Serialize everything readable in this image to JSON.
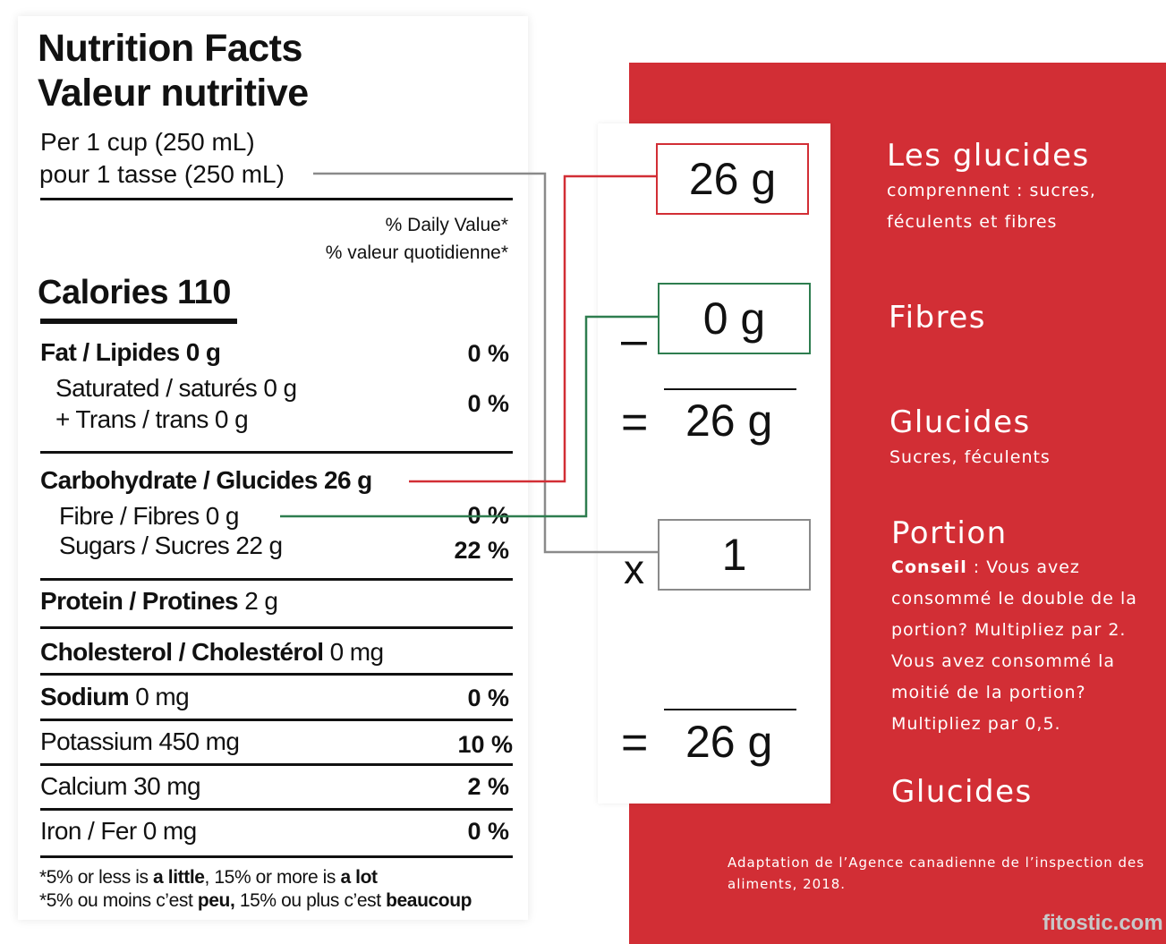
{
  "label": {
    "title_en": "Nutrition Facts",
    "title_fr": "Valeur nutritive",
    "serving_en": "Per 1 cup (250 mL)",
    "serving_fr": "pour 1 tasse (250 mL)",
    "dv_en": "% Daily Value*",
    "dv_fr": "% valeur quotidienne*",
    "calories": "Calories 110",
    "fat": {
      "label": "Fat / Lipides 0 g",
      "pct": "0 %"
    },
    "saturated": {
      "line1": "Saturated / saturés 0 g",
      "line2": "+ Trans / trans 0 g",
      "pct": "0 %"
    },
    "carb": {
      "label": "Carbohydrate / Glucides 26 g"
    },
    "fibre": {
      "label": "Fibre / Fibres 0 g",
      "pct": "0 %"
    },
    "sugars": {
      "label": "Sugars / Sucres 22 g",
      "pct": "22 %"
    },
    "protein": {
      "bold": "Protein / Protines",
      "rest": " 2 g"
    },
    "cholesterol": {
      "bold": "Cholesterol / Cholestérol",
      "rest": " 0 mg"
    },
    "sodium": {
      "bold": "Sodium",
      "rest": " 0 mg",
      "pct": "0 %"
    },
    "potassium": {
      "label": "Potassium 450 mg",
      "pct": "10 %"
    },
    "calcium": {
      "label": "Calcium 30 mg",
      "pct": "2 %"
    },
    "iron": {
      "label": "Iron / Fer 0 mg",
      "pct": "0 %"
    },
    "footnote_en": {
      "a": "*5% or less is ",
      "b": "a little",
      "c": ", 15% or more is ",
      "d": "a lot"
    },
    "footnote_fr": {
      "a": "*5% ou moins c’est ",
      "b": "peu,",
      "c": " 15% ou plus c’est ",
      "d": "beaucoup"
    }
  },
  "calc": {
    "total_carbs": "26 g",
    "minus_sign": "–",
    "fibre": "0 g",
    "equals1": "=",
    "net_carbs": "26 g",
    "times_sign": "x",
    "portion": "1",
    "equals2": "=",
    "result": "26 g"
  },
  "legend": {
    "glucides_title": "Les glucides",
    "glucides_desc1": "comprennent : sucres,",
    "glucides_desc2": "féculents et fibres",
    "fibres_title": "Fibres",
    "glucides2_title": "Glucides",
    "glucides2_desc": "Sucres, féculents",
    "portion_title": "Portion",
    "portion_tip_label": "Conseil",
    "portion_tip_text": " : Vous avez consommé le double de la portion? Multipliez par 2. Vous avez consommé la moitié de la portion? Multipliez par 0,5.",
    "result_title": "Glucides"
  },
  "credit": "Adaptation de l’Agence canadienne de l’inspection des aliments, 2018.",
  "watermark": "fitostic.com",
  "colors": {
    "red": "#d22e35",
    "connector_red": "#d22e35",
    "connector_green": "#2e7d4f",
    "connector_gray": "#8a8a8a"
  }
}
